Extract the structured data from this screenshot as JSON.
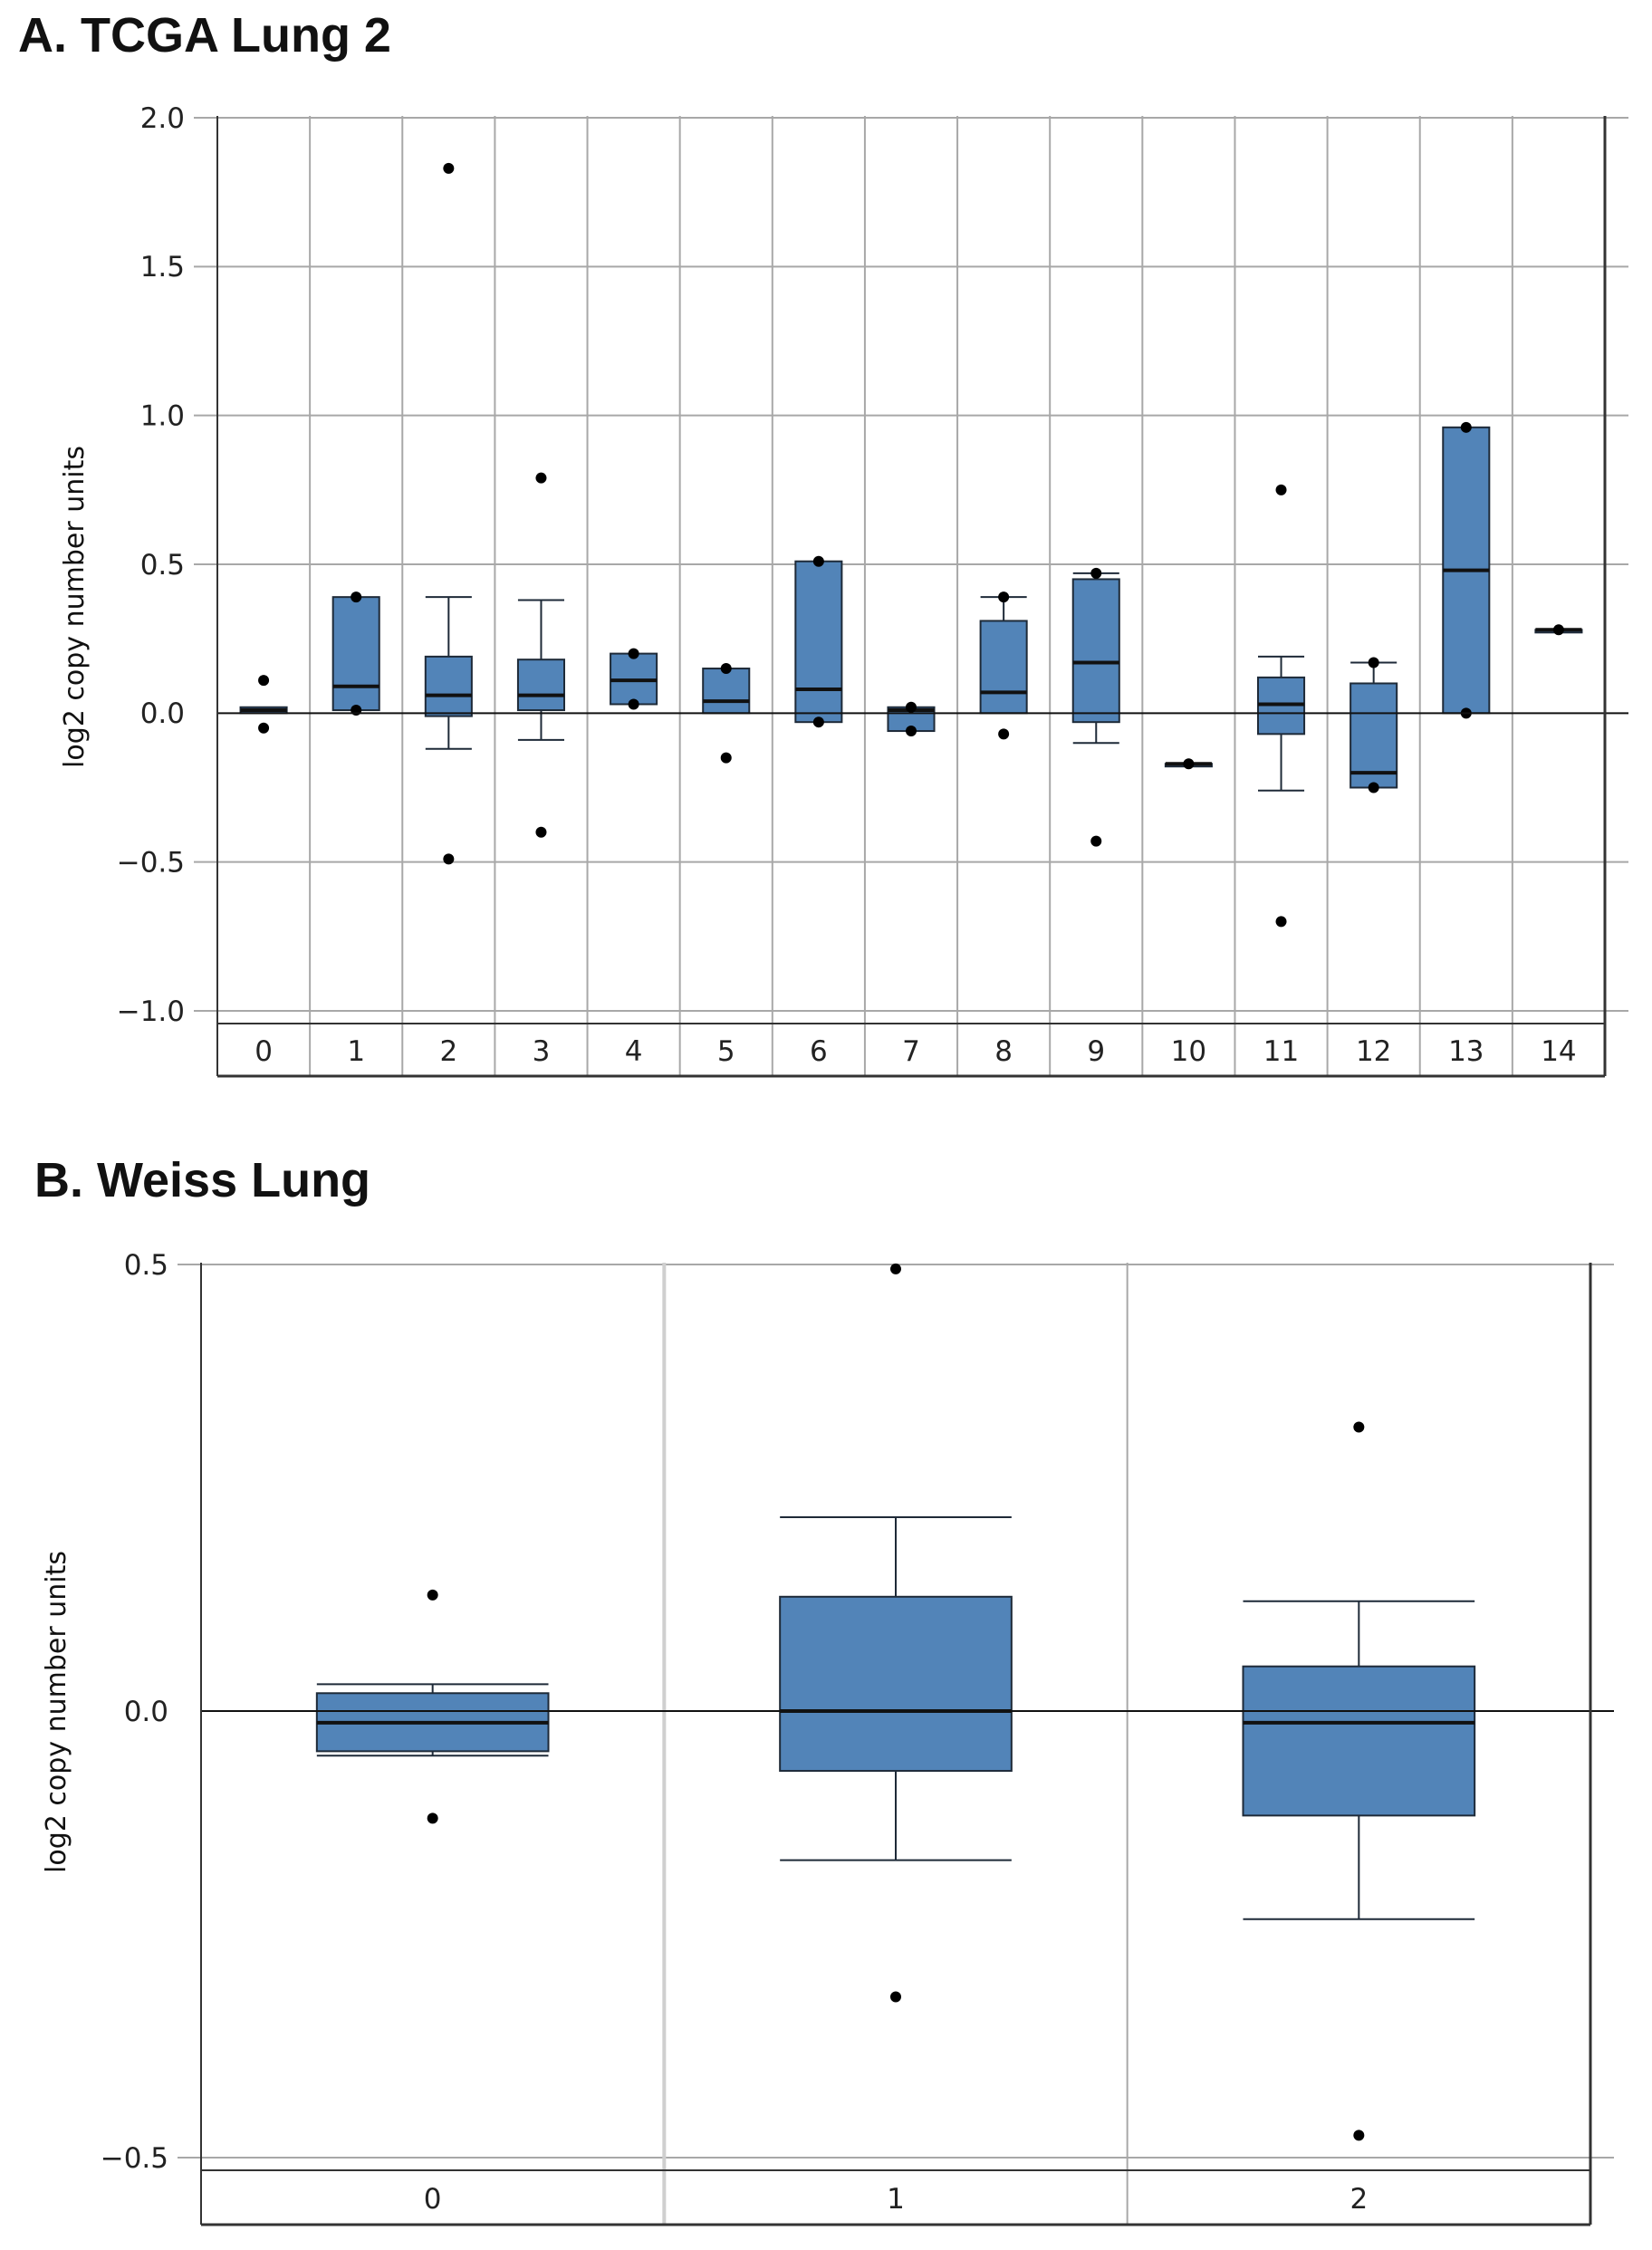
{
  "chart_data": [
    {
      "type": "box",
      "title": "A. TCGA Lung 2",
      "xlabel": "",
      "ylabel": "log2 copy number units",
      "ylim": [
        -1.0,
        2.0
      ],
      "yticks": [
        "2.0",
        "1.5",
        "1.0",
        "0.5",
        "0.0",
        "−0.5",
        "−1.0"
      ],
      "categories": [
        "0",
        "1",
        "2",
        "3",
        "4",
        "5",
        "6",
        "7",
        "8",
        "9",
        "10",
        "11",
        "12",
        "13",
        "14"
      ],
      "boxes": [
        {
          "q1": 0.0,
          "median": 0.01,
          "q3": 0.02,
          "whisker_low": 0.0,
          "whisker_high": 0.02,
          "outliers": [
            0.11,
            -0.05
          ]
        },
        {
          "q1": 0.01,
          "median": 0.09,
          "q3": 0.39,
          "whisker_low": 0.01,
          "whisker_high": 0.39,
          "outliers": [
            0.39,
            0.01
          ]
        },
        {
          "q1": -0.01,
          "median": 0.06,
          "q3": 0.19,
          "whisker_low": -0.12,
          "whisker_high": 0.39,
          "outliers": [
            1.83,
            -0.49
          ]
        },
        {
          "q1": 0.01,
          "median": 0.06,
          "q3": 0.18,
          "whisker_low": -0.09,
          "whisker_high": 0.38,
          "outliers": [
            0.79,
            -0.4
          ]
        },
        {
          "q1": 0.03,
          "median": 0.11,
          "q3": 0.2,
          "whisker_low": 0.03,
          "whisker_high": 0.2,
          "outliers": [
            0.2,
            0.03
          ]
        },
        {
          "q1": 0.0,
          "median": 0.04,
          "q3": 0.15,
          "whisker_low": 0.0,
          "whisker_high": 0.15,
          "outliers": [
            0.15,
            -0.15
          ]
        },
        {
          "q1": -0.03,
          "median": 0.08,
          "q3": 0.51,
          "whisker_low": -0.03,
          "whisker_high": 0.51,
          "outliers": [
            0.51,
            -0.03
          ]
        },
        {
          "q1": -0.06,
          "median": 0.01,
          "q3": 0.02,
          "whisker_low": -0.06,
          "whisker_high": 0.02,
          "outliers": [
            0.02,
            -0.06
          ]
        },
        {
          "q1": 0.0,
          "median": 0.07,
          "q3": 0.31,
          "whisker_low": 0.0,
          "whisker_high": 0.39,
          "outliers": [
            0.39,
            -0.07
          ]
        },
        {
          "q1": -0.03,
          "median": 0.17,
          "q3": 0.45,
          "whisker_low": -0.1,
          "whisker_high": 0.47,
          "outliers": [
            0.47,
            -0.43
          ]
        },
        {
          "q1": -0.17,
          "median": -0.17,
          "q3": -0.17,
          "whisker_low": -0.17,
          "whisker_high": -0.17,
          "outliers": [
            -0.17
          ]
        },
        {
          "q1": -0.07,
          "median": 0.03,
          "q3": 0.12,
          "whisker_low": -0.26,
          "whisker_high": 0.19,
          "outliers": [
            0.75,
            -0.7
          ]
        },
        {
          "q1": -0.25,
          "median": -0.2,
          "q3": 0.1,
          "whisker_low": -0.25,
          "whisker_high": 0.17,
          "outliers": [
            0.17,
            -0.25
          ]
        },
        {
          "q1": 0.0,
          "median": 0.48,
          "q3": 0.96,
          "whisker_low": 0.0,
          "whisker_high": 0.96,
          "outliers": [
            0.96,
            0.0
          ]
        },
        {
          "q1": 0.28,
          "median": 0.28,
          "q3": 0.28,
          "whisker_low": 0.28,
          "whisker_high": 0.28,
          "outliers": [
            0.28
          ]
        }
      ],
      "colors": {
        "box_fill": "#5284b8",
        "box_stroke": "#1e2a38",
        "grid": "#a8a8a8",
        "axis": "#333333"
      }
    },
    {
      "type": "box",
      "title": "B. Weiss Lung",
      "xlabel": "",
      "ylabel": "log2 copy number units",
      "ylim": [
        -0.5,
        0.5
      ],
      "yticks": [
        "0.5",
        "0.0",
        "−0.5"
      ],
      "categories": [
        "0",
        "1",
        "2"
      ],
      "boxes": [
        {
          "q1": -0.045,
          "median": -0.013,
          "q3": 0.02,
          "whisker_low": -0.05,
          "whisker_high": 0.03,
          "outliers": [
            0.13,
            -0.12
          ]
        },
        {
          "q1": -0.067,
          "median": 0.0,
          "q3": 0.128,
          "whisker_low": -0.167,
          "whisker_high": 0.217,
          "outliers": [
            0.495,
            -0.32
          ]
        },
        {
          "q1": -0.117,
          "median": -0.013,
          "q3": 0.05,
          "whisker_low": -0.233,
          "whisker_high": 0.123,
          "outliers": [
            0.318,
            -0.475
          ]
        }
      ],
      "colors": {
        "box_fill": "#5284b8",
        "box_stroke": "#1e2a38",
        "grid": "#a8a8a8",
        "axis": "#333333"
      }
    }
  ]
}
